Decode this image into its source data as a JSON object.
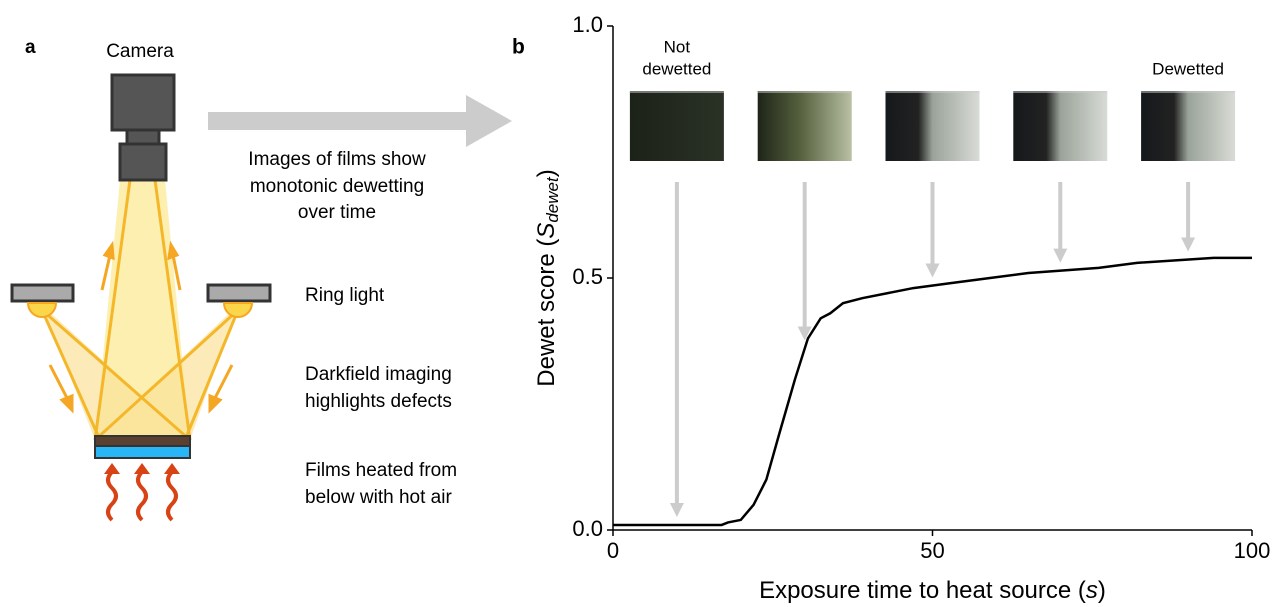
{
  "panel_a": {
    "label": "a",
    "camera": "Camera",
    "arrow_caption": [
      "Images of films show",
      "monotonic dewetting",
      "over time"
    ],
    "ring_light": "Ring light",
    "darkfield": [
      "Darkfield imaging",
      "highlights defects"
    ],
    "heating": [
      "Films heated from",
      "below with hot air"
    ]
  },
  "chart_data": {
    "type": "line",
    "panel_label": "b",
    "xlabel": {
      "text": "Exposure time to heat source (",
      "symbol": "s",
      "close": ")"
    },
    "ylabel": {
      "text": "Dewet score (",
      "symbol": "S",
      "subscript": "dewet",
      "close": ")"
    },
    "x": [
      0,
      17,
      18,
      20,
      22,
      24,
      26,
      28.5,
      30.5,
      32.5,
      34,
      36,
      39,
      43,
      47,
      53,
      59,
      65,
      76,
      82,
      94,
      100
    ],
    "values": [
      0.01,
      0.01,
      0.015,
      0.02,
      0.05,
      0.1,
      0.19,
      0.3,
      0.38,
      0.42,
      0.43,
      0.45,
      0.46,
      0.47,
      0.48,
      0.49,
      0.5,
      0.51,
      0.52,
      0.53,
      0.54,
      0.54
    ],
    "color": "#000000",
    "xlim": [
      0,
      100
    ],
    "xticks": [
      0,
      50,
      100
    ],
    "ylim": [
      0,
      1
    ],
    "yticks": [
      {
        "value": 0,
        "label": "0.0"
      },
      {
        "value": 0.5,
        "label": "0.5"
      },
      {
        "value": 1,
        "label": "1.0"
      }
    ],
    "snapshots_x": [
      10,
      30,
      50,
      70,
      90
    ],
    "annotations": [
      [
        "Not",
        "dewetted"
      ],
      [
        "Dewetted"
      ]
    ]
  }
}
